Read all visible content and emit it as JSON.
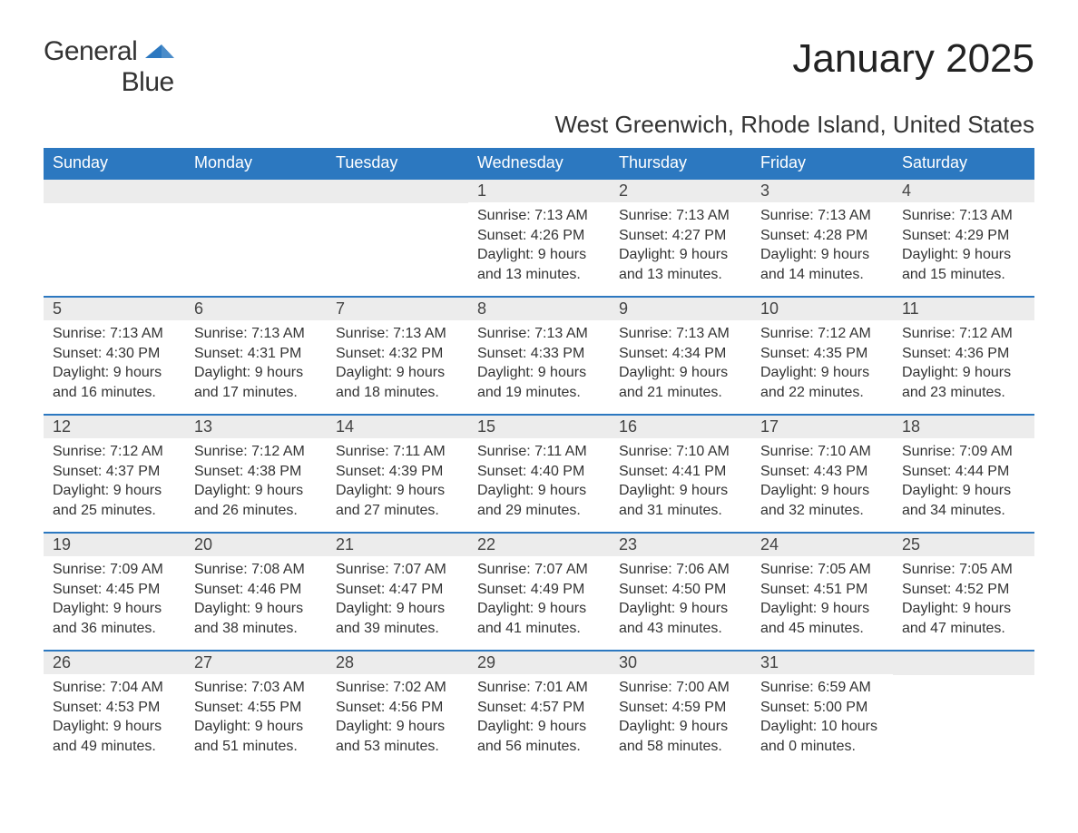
{
  "logo": {
    "word1": "General",
    "word2": "Blue"
  },
  "title": "January 2025",
  "subtitle": "West Greenwich, Rhode Island, United States",
  "colors": {
    "header_bg": "#2c78c0",
    "header_fg": "#ffffff",
    "row_border": "#2c78c0",
    "daynum_bg": "#ececec",
    "daynum_fg": "#444444",
    "logo_accent": "#2c78c0"
  },
  "layout": {
    "columns": 7,
    "rows": 5
  },
  "labels": {
    "sunrise": "Sunrise:",
    "sunset": "Sunset:",
    "daylight": "Daylight:"
  },
  "weekdays": [
    "Sunday",
    "Monday",
    "Tuesday",
    "Wednesday",
    "Thursday",
    "Friday",
    "Saturday"
  ],
  "weeks": [
    [
      null,
      null,
      null,
      {
        "day": "1",
        "sunrise": "7:13 AM",
        "sunset": "4:26 PM",
        "daylight": "9 hours and 13 minutes."
      },
      {
        "day": "2",
        "sunrise": "7:13 AM",
        "sunset": "4:27 PM",
        "daylight": "9 hours and 13 minutes."
      },
      {
        "day": "3",
        "sunrise": "7:13 AM",
        "sunset": "4:28 PM",
        "daylight": "9 hours and 14 minutes."
      },
      {
        "day": "4",
        "sunrise": "7:13 AM",
        "sunset": "4:29 PM",
        "daylight": "9 hours and 15 minutes."
      }
    ],
    [
      {
        "day": "5",
        "sunrise": "7:13 AM",
        "sunset": "4:30 PM",
        "daylight": "9 hours and 16 minutes."
      },
      {
        "day": "6",
        "sunrise": "7:13 AM",
        "sunset": "4:31 PM",
        "daylight": "9 hours and 17 minutes."
      },
      {
        "day": "7",
        "sunrise": "7:13 AM",
        "sunset": "4:32 PM",
        "daylight": "9 hours and 18 minutes."
      },
      {
        "day": "8",
        "sunrise": "7:13 AM",
        "sunset": "4:33 PM",
        "daylight": "9 hours and 19 minutes."
      },
      {
        "day": "9",
        "sunrise": "7:13 AM",
        "sunset": "4:34 PM",
        "daylight": "9 hours and 21 minutes."
      },
      {
        "day": "10",
        "sunrise": "7:12 AM",
        "sunset": "4:35 PM",
        "daylight": "9 hours and 22 minutes."
      },
      {
        "day": "11",
        "sunrise": "7:12 AM",
        "sunset": "4:36 PM",
        "daylight": "9 hours and 23 minutes."
      }
    ],
    [
      {
        "day": "12",
        "sunrise": "7:12 AM",
        "sunset": "4:37 PM",
        "daylight": "9 hours and 25 minutes."
      },
      {
        "day": "13",
        "sunrise": "7:12 AM",
        "sunset": "4:38 PM",
        "daylight": "9 hours and 26 minutes."
      },
      {
        "day": "14",
        "sunrise": "7:11 AM",
        "sunset": "4:39 PM",
        "daylight": "9 hours and 27 minutes."
      },
      {
        "day": "15",
        "sunrise": "7:11 AM",
        "sunset": "4:40 PM",
        "daylight": "9 hours and 29 minutes."
      },
      {
        "day": "16",
        "sunrise": "7:10 AM",
        "sunset": "4:41 PM",
        "daylight": "9 hours and 31 minutes."
      },
      {
        "day": "17",
        "sunrise": "7:10 AM",
        "sunset": "4:43 PM",
        "daylight": "9 hours and 32 minutes."
      },
      {
        "day": "18",
        "sunrise": "7:09 AM",
        "sunset": "4:44 PM",
        "daylight": "9 hours and 34 minutes."
      }
    ],
    [
      {
        "day": "19",
        "sunrise": "7:09 AM",
        "sunset": "4:45 PM",
        "daylight": "9 hours and 36 minutes."
      },
      {
        "day": "20",
        "sunrise": "7:08 AM",
        "sunset": "4:46 PM",
        "daylight": "9 hours and 38 minutes."
      },
      {
        "day": "21",
        "sunrise": "7:07 AM",
        "sunset": "4:47 PM",
        "daylight": "9 hours and 39 minutes."
      },
      {
        "day": "22",
        "sunrise": "7:07 AM",
        "sunset": "4:49 PM",
        "daylight": "9 hours and 41 minutes."
      },
      {
        "day": "23",
        "sunrise": "7:06 AM",
        "sunset": "4:50 PM",
        "daylight": "9 hours and 43 minutes."
      },
      {
        "day": "24",
        "sunrise": "7:05 AM",
        "sunset": "4:51 PM",
        "daylight": "9 hours and 45 minutes."
      },
      {
        "day": "25",
        "sunrise": "7:05 AM",
        "sunset": "4:52 PM",
        "daylight": "9 hours and 47 minutes."
      }
    ],
    [
      {
        "day": "26",
        "sunrise": "7:04 AM",
        "sunset": "4:53 PM",
        "daylight": "9 hours and 49 minutes."
      },
      {
        "day": "27",
        "sunrise": "7:03 AM",
        "sunset": "4:55 PM",
        "daylight": "9 hours and 51 minutes."
      },
      {
        "day": "28",
        "sunrise": "7:02 AM",
        "sunset": "4:56 PM",
        "daylight": "9 hours and 53 minutes."
      },
      {
        "day": "29",
        "sunrise": "7:01 AM",
        "sunset": "4:57 PM",
        "daylight": "9 hours and 56 minutes."
      },
      {
        "day": "30",
        "sunrise": "7:00 AM",
        "sunset": "4:59 PM",
        "daylight": "9 hours and 58 minutes."
      },
      {
        "day": "31",
        "sunrise": "6:59 AM",
        "sunset": "5:00 PM",
        "daylight": "10 hours and 0 minutes."
      },
      null
    ]
  ]
}
